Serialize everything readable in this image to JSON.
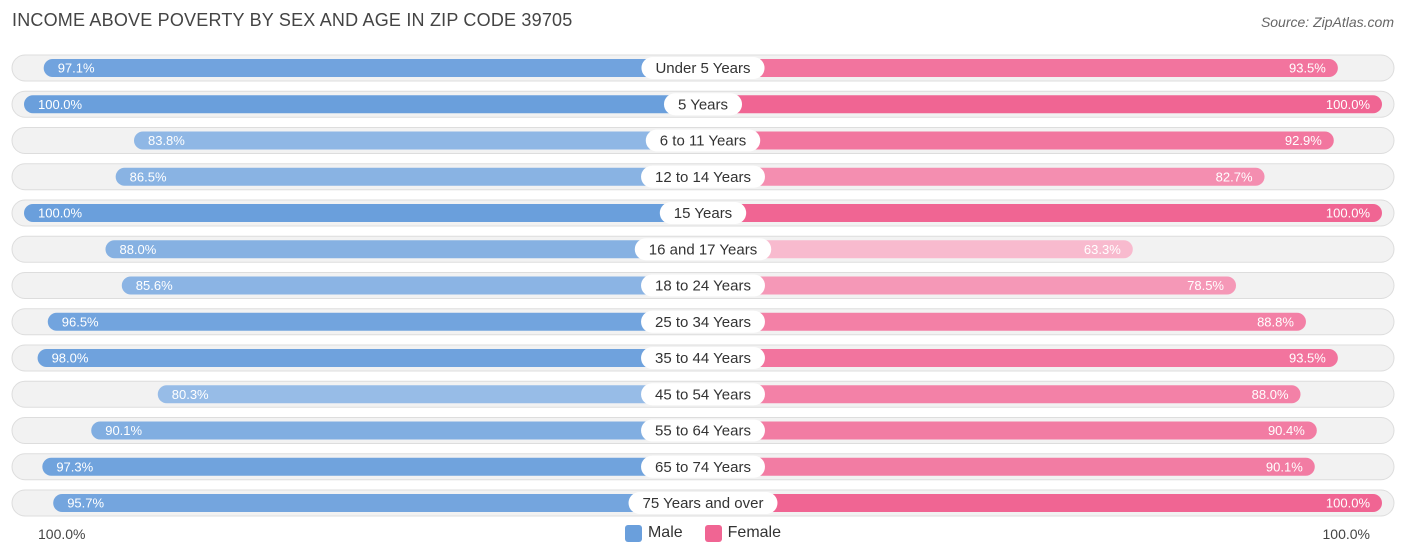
{
  "chart_data": {
    "type": "bar",
    "title": "INCOME ABOVE POVERTY BY SEX AND AGE IN ZIP CODE 39705",
    "source": "Source: ZipAtlas.com",
    "categories": [
      "Under 5 Years",
      "5 Years",
      "6 to 11 Years",
      "12 to 14 Years",
      "15 Years",
      "16 and 17 Years",
      "18 to 24 Years",
      "25 to 34 Years",
      "35 to 44 Years",
      "45 to 54 Years",
      "55 to 64 Years",
      "65 to 74 Years",
      "75 Years and over"
    ],
    "series": [
      {
        "name": "Male",
        "color": "#6a9fdc",
        "values": [
          97.1,
          100.0,
          83.8,
          86.5,
          100.0,
          88.0,
          85.6,
          96.5,
          98.0,
          80.3,
          90.1,
          97.3,
          95.7
        ],
        "labels": [
          "97.1%",
          "100.0%",
          "83.8%",
          "86.5%",
          "100.0%",
          "88.0%",
          "85.6%",
          "96.5%",
          "98.0%",
          "80.3%",
          "90.1%",
          "97.3%",
          "95.7%"
        ]
      },
      {
        "name": "Female",
        "color": "#f06593",
        "values": [
          93.5,
          100.0,
          92.9,
          82.7,
          100.0,
          63.3,
          78.5,
          88.8,
          93.5,
          88.0,
          90.4,
          90.1,
          100.0
        ],
        "labels": [
          "93.5%",
          "100.0%",
          "92.9%",
          "82.7%",
          "100.0%",
          "63.3%",
          "78.5%",
          "88.8%",
          "93.5%",
          "88.0%",
          "90.4%",
          "90.1%",
          "100.0%"
        ]
      }
    ],
    "xlim": [
      0,
      100
    ],
    "axis_left_label": "100.0%",
    "axis_right_label": "100.0%",
    "legend_position": "bottom-center"
  }
}
